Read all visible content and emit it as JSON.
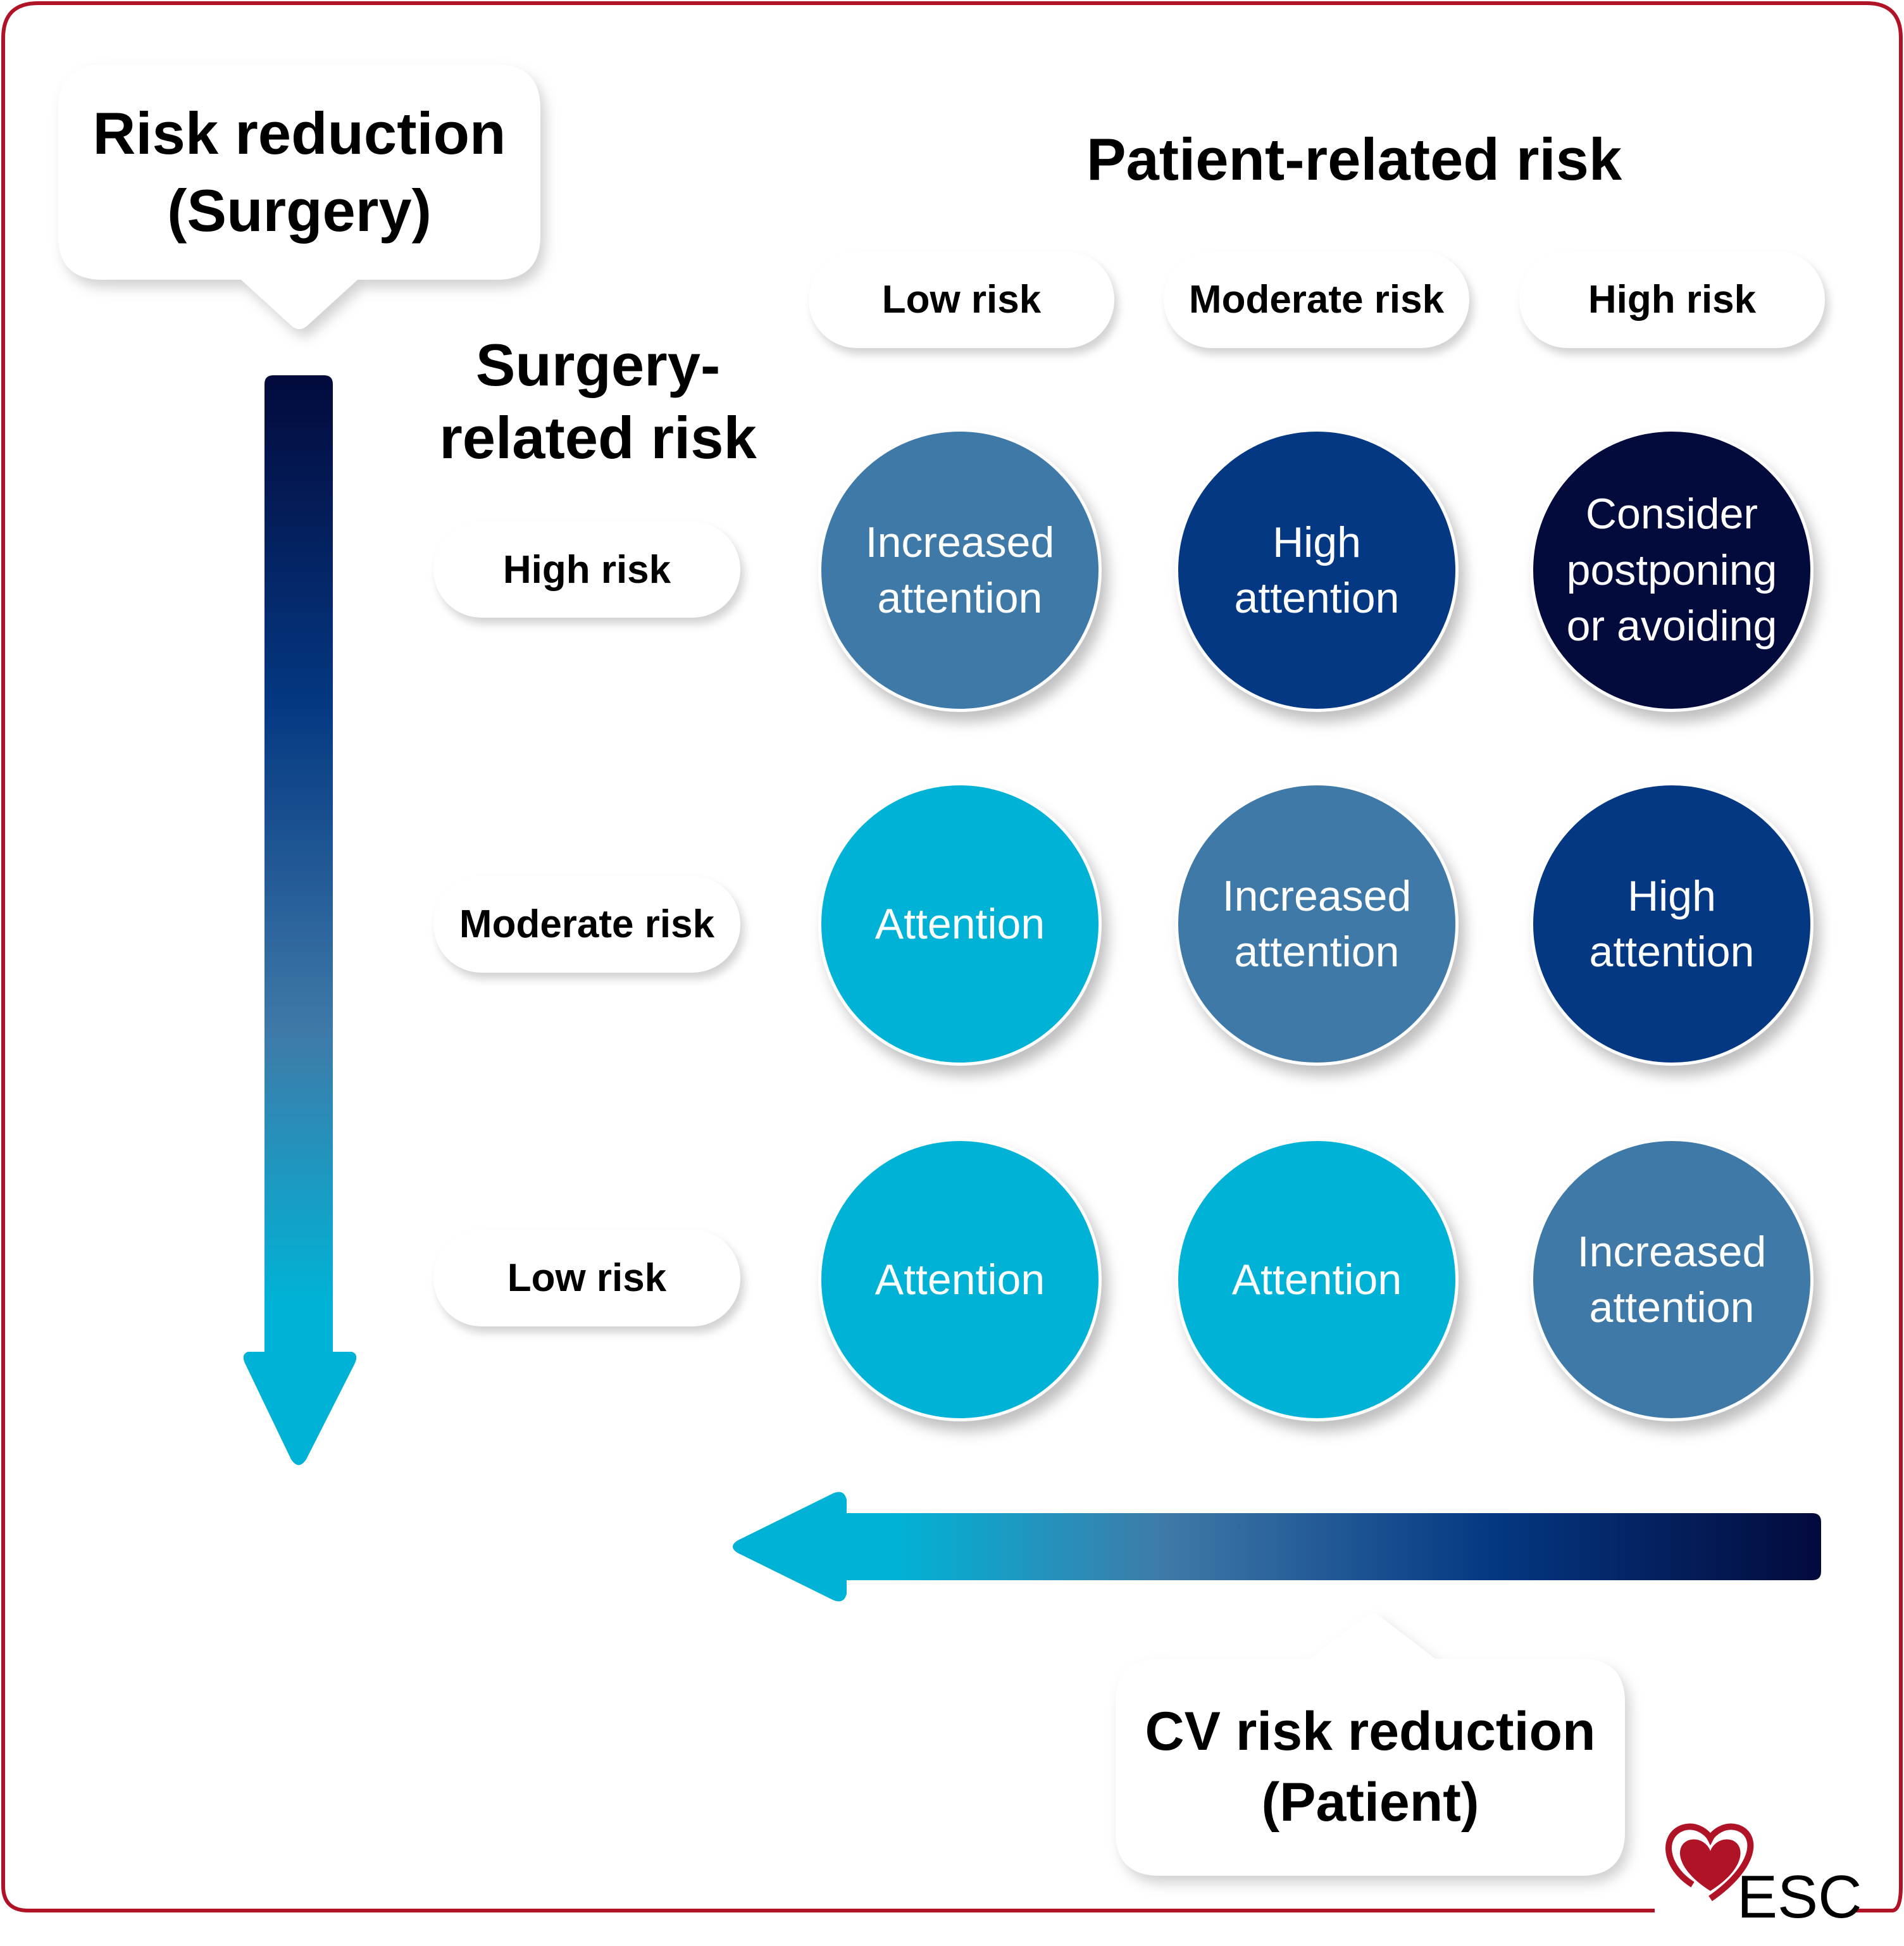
{
  "risk_reduction_surgery": {
    "line1": "Risk reduction",
    "line2": "(Surgery)"
  },
  "patient_axis_title": "Patient-related risk",
  "surgery_axis_title": {
    "line1": "Surgery-",
    "line2": "related risk"
  },
  "columns": [
    "Low risk",
    "Moderate risk",
    "High risk"
  ],
  "rows": [
    "High risk",
    "Moderate risk",
    "Low risk"
  ],
  "matrix": [
    [
      {
        "text": "Increased attention",
        "level": "increased"
      },
      {
        "text": "High attention",
        "level": "high"
      },
      {
        "text": "Consider postponing or avoiding",
        "level": "consider"
      }
    ],
    [
      {
        "text": "Attention",
        "level": "attention"
      },
      {
        "text": "Increased attention",
        "level": "increased"
      },
      {
        "text": "High attention",
        "level": "high"
      }
    ],
    [
      {
        "text": "Attention",
        "level": "attention"
      },
      {
        "text": "Attention",
        "level": "attention"
      },
      {
        "text": "Increased attention",
        "level": "increased"
      }
    ]
  ],
  "cv_risk_reduction": {
    "line1": "CV risk reduction",
    "line2": "(Patient)"
  },
  "logo": {
    "text": "ESC"
  },
  "colors": {
    "attention": "#00b3d6",
    "increased": "#3f79a8",
    "high": "#043882",
    "consider": "#030a3c",
    "frame": "#b01226"
  }
}
